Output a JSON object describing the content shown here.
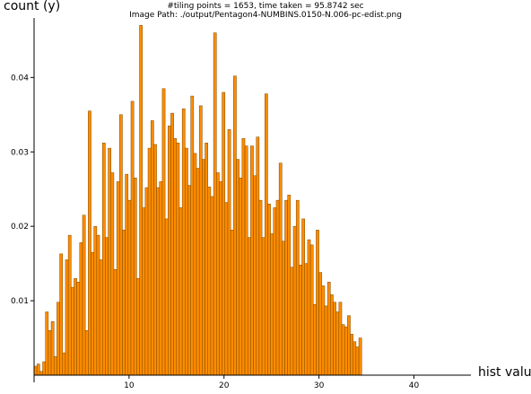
{
  "chart_data": {
    "type": "bar",
    "title": "#tiling points = 1653, time taken = 95.8742 sec",
    "subtitle": "Image Path: ./output/Pentagon4-NUMBINS.0150-N.006-pc-edist.png",
    "xlabel": "hist value",
    "ylabel": "count (y)",
    "xlim": [
      0,
      46
    ],
    "ylim": [
      0,
      0.048
    ],
    "x_ticks": [
      10,
      20,
      30,
      40
    ],
    "y_ticks": [
      0.01,
      0.02,
      0.03,
      0.04
    ],
    "y_tick_labels": [
      "0.01",
      "0.02",
      "0.03",
      "0.04"
    ],
    "x_tick_labels": [
      "10",
      "20",
      "30",
      "40"
    ],
    "bin_start": 0,
    "bin_width": 0.3,
    "values": [
      0.0012,
      0.0015,
      0.0005,
      0.0018,
      0.0085,
      0.006,
      0.0072,
      0.0025,
      0.0098,
      0.0163,
      0.003,
      0.0155,
      0.0188,
      0.0118,
      0.013,
      0.0125,
      0.0178,
      0.0215,
      0.006,
      0.0355,
      0.0165,
      0.02,
      0.0188,
      0.0155,
      0.0312,
      0.0185,
      0.0305,
      0.0272,
      0.0142,
      0.026,
      0.035,
      0.0195,
      0.027,
      0.0235,
      0.0368,
      0.0265,
      0.013,
      0.047,
      0.0225,
      0.0252,
      0.0305,
      0.0342,
      0.031,
      0.0252,
      0.026,
      0.0385,
      0.021,
      0.0335,
      0.0352,
      0.0318,
      0.0312,
      0.0225,
      0.0358,
      0.0305,
      0.0255,
      0.0375,
      0.0298,
      0.0278,
      0.0362,
      0.029,
      0.0312,
      0.0253,
      0.024,
      0.046,
      0.0272,
      0.026,
      0.038,
      0.0232,
      0.033,
      0.0195,
      0.0402,
      0.029,
      0.0265,
      0.0318,
      0.0308,
      0.0185,
      0.0308,
      0.0268,
      0.032,
      0.0235,
      0.0185,
      0.0378,
      0.023,
      0.019,
      0.0225,
      0.0235,
      0.0285,
      0.018,
      0.0235,
      0.0242,
      0.0145,
      0.02,
      0.0235,
      0.0148,
      0.021,
      0.015,
      0.0182,
      0.0175,
      0.0095,
      0.0195,
      0.0138,
      0.012,
      0.0093,
      0.0125,
      0.0108,
      0.0098,
      0.0085,
      0.0098,
      0.0068,
      0.0065,
      0.008,
      0.0055,
      0.0045,
      0.0038,
      0.005
    ],
    "bar_color": "#ff8c00",
    "bar_edge_color": "#7a4a00",
    "grid": false,
    "legend": "none"
  }
}
